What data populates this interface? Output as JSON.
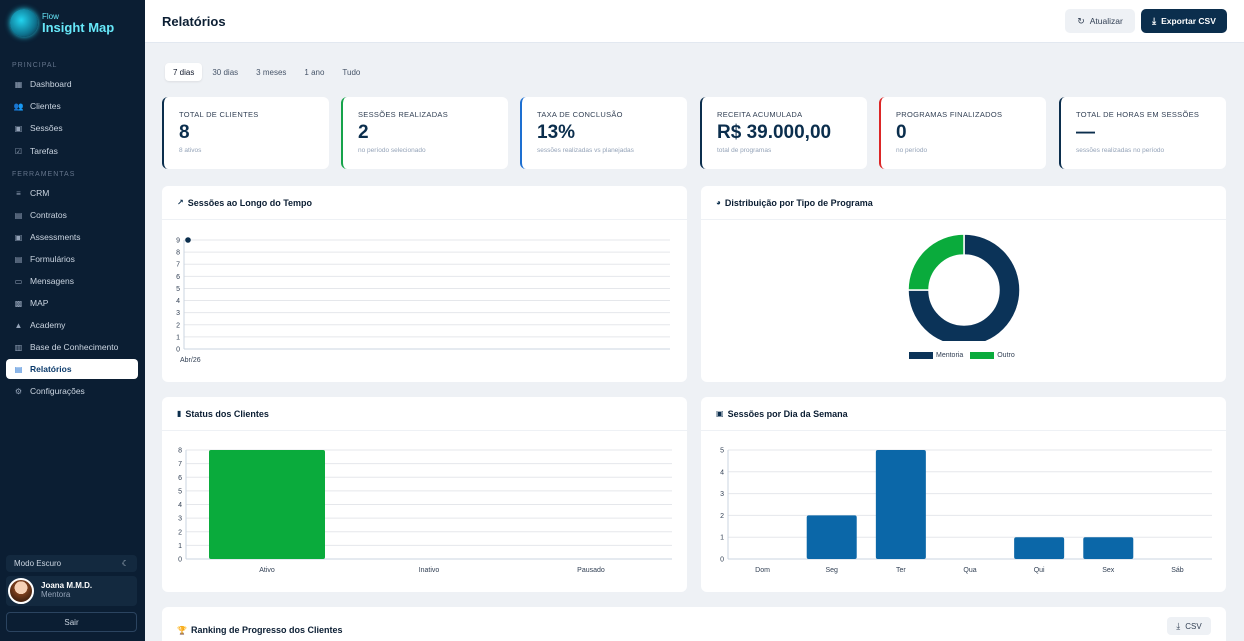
{
  "app": {
    "logo_small": "Flow",
    "logo_big": "Insight Map"
  },
  "sidebar": {
    "section_principal": "PRINCIPAL",
    "section_ferramentas": "FERRAMENTAS",
    "principal_items": [
      {
        "label": "Dashboard",
        "icon": "grid-icon"
      },
      {
        "label": "Clientes",
        "icon": "users-icon"
      },
      {
        "label": "Sessões",
        "icon": "calendar-icon"
      },
      {
        "label": "Tarefas",
        "icon": "check-square-icon"
      }
    ],
    "ferramentas_items": [
      {
        "label": "CRM",
        "icon": "menu-icon"
      },
      {
        "label": "Contratos",
        "icon": "file-icon"
      },
      {
        "label": "Assessments",
        "icon": "calendar-icon"
      },
      {
        "label": "Formulários",
        "icon": "form-icon"
      },
      {
        "label": "Mensagens",
        "icon": "message-icon"
      },
      {
        "label": "MAP",
        "icon": "map-icon"
      },
      {
        "label": "Academy",
        "icon": "graduation-cap-icon"
      },
      {
        "label": "Base de Conhecimento",
        "icon": "book-icon"
      },
      {
        "label": "Relatórios",
        "icon": "report-icon",
        "active": true
      },
      {
        "label": "Configurações",
        "icon": "gear-icon"
      }
    ],
    "dark_mode_label": "Modo Escuro",
    "user": {
      "name": "Joana M.M.D.",
      "role": "Mentora"
    },
    "logout_label": "Sair"
  },
  "header": {
    "title": "Relatórios",
    "refresh_label": "Atualizar",
    "export_label": "Exportar CSV"
  },
  "periods": {
    "items": [
      "7 dias",
      "30 dias",
      "3 meses",
      "1 ano",
      "Tudo"
    ],
    "selected": "7 dias"
  },
  "kpis": [
    {
      "title": "TOTAL DE CLIENTES",
      "value": "8",
      "sub": "8 ativos",
      "accent": "#0b2e4d"
    },
    {
      "title": "SESSÕES REALIZADAS",
      "value": "2",
      "sub": "no período selecionado",
      "accent": "#16a34a"
    },
    {
      "title": "TAXA DE CONCLUSÃO",
      "value": "13%",
      "sub": "sessões realizadas vs planejadas",
      "accent": "#1d6fd1"
    },
    {
      "title": "RECEITA ACUMULADA",
      "value": "R$ 39.000,00",
      "sub": "total de programas",
      "accent": "#0b2e4d"
    },
    {
      "title": "PROGRAMAS FINALIZADOS",
      "value": "0",
      "sub": "no período",
      "accent": "#dc2626"
    },
    {
      "title": "TOTAL DE HORAS EM SESSÕES",
      "value": "—",
      "sub": "sessões realizadas no período",
      "accent": "#0b2e4d"
    }
  ],
  "panels": {
    "sessions_time": "Sessões ao Longo do Tempo",
    "program_dist": "Distribuição por Tipo de Programa",
    "client_status": "Status dos Clientes",
    "sessions_weekday": "Sessões por Dia da Semana",
    "ranking": "Ranking de Progresso dos Clientes",
    "ranking_csv": "CSV"
  },
  "chart_data": [
    {
      "type": "line",
      "title": "Sessões ao Longo do Tempo",
      "x": [
        "Abr/26"
      ],
      "series": [
        {
          "values": [
            9
          ]
        }
      ],
      "ylim": [
        0,
        9
      ],
      "yticks": [
        0,
        1,
        2,
        3,
        4,
        5,
        6,
        7,
        8,
        9
      ],
      "grid": true,
      "color": "#0b2e4d"
    },
    {
      "type": "pie",
      "title": "Distribuição por Tipo de Programa",
      "categories": [
        "Mentoria",
        "Outro"
      ],
      "values": [
        75,
        25
      ],
      "colors": [
        "#0b3358",
        "#0aab3c"
      ],
      "legend": "bottom"
    },
    {
      "type": "bar",
      "title": "Status dos Clientes",
      "categories": [
        "Ativo",
        "Inativo",
        "Pausado"
      ],
      "values": [
        8,
        0,
        0
      ],
      "ylim": [
        0,
        8
      ],
      "yticks": [
        0,
        1,
        2,
        3,
        4,
        5,
        6,
        7,
        8
      ],
      "grid": true,
      "color": "#0aab3c"
    },
    {
      "type": "bar",
      "title": "Sessões por Dia da Semana",
      "categories": [
        "Dom",
        "Seg",
        "Ter",
        "Qua",
        "Qui",
        "Sex",
        "Sáb"
      ],
      "values": [
        0,
        2,
        5,
        0,
        1,
        1,
        0
      ],
      "ylim": [
        0,
        5
      ],
      "yticks": [
        0,
        1,
        2,
        3,
        4,
        5
      ],
      "grid": true,
      "color": "#0b67a8"
    }
  ]
}
